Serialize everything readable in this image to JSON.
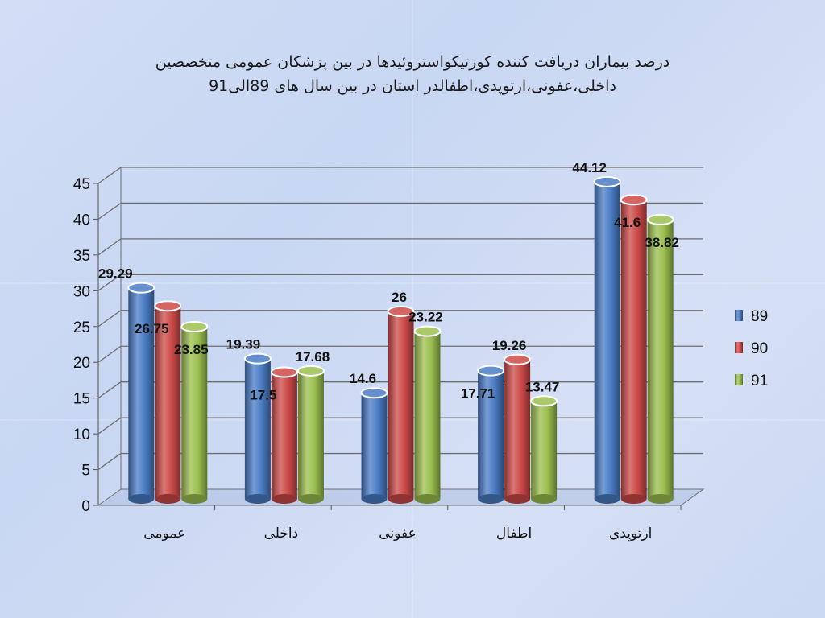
{
  "title_line1": "درصد بیماران دریافت کننده کورتیکواستروئیدها در بین پزشکان عمومی متخصصین",
  "title_line2": "داخلی،عفونی،ارتوپدی،اطفالدر استان در بین سال های 89الی91",
  "colors": {
    "series_89": "#4a7cc4",
    "series_90": "#cc4a47",
    "series_91": "#9bbf4f"
  },
  "chart_data": {
    "type": "bar",
    "title": "درصد بیماران دریافت کننده کورتیکواستروئیدها در بین پزشکان عمومی متخصصین داخلی،عفونی،ارتوپدی،اطفالدر استان در بین سال های 89الی91",
    "categories": [
      "عمومی",
      "داخلی",
      "عفونی",
      "اطفال",
      "ارتوپدی"
    ],
    "series": [
      {
        "name": "89",
        "values": [
          29.29,
          19.39,
          14.6,
          17.71,
          44.12
        ]
      },
      {
        "name": "90",
        "values": [
          26.75,
          17.5,
          26,
          19.26,
          41.6
        ]
      },
      {
        "name": "91",
        "values": [
          23.85,
          17.68,
          23.22,
          13.47,
          38.82
        ]
      }
    ],
    "yticks": [
      "0",
      "5",
      "10",
      "15",
      "20",
      "25",
      "30",
      "35",
      "40",
      "45"
    ],
    "ylim": [
      0,
      45
    ],
    "grid": true,
    "legend_position": "right",
    "xlabel": "",
    "ylabel": ""
  }
}
